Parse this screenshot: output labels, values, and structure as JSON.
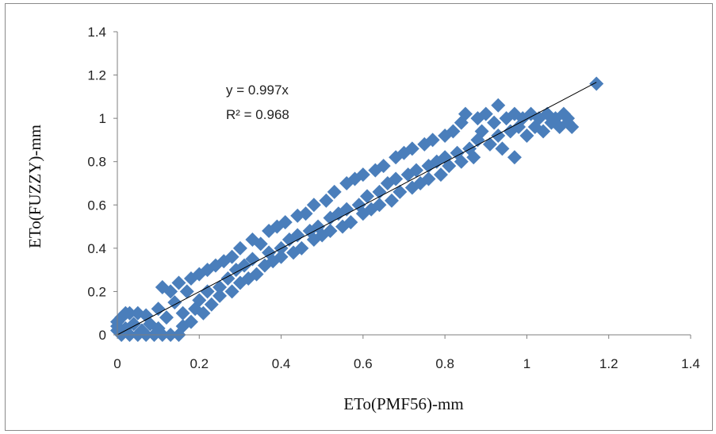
{
  "chart_data": {
    "type": "scatter",
    "xlabel": "ETo(PMF56)-mm",
    "ylabel": "ETo(FUZZY)-mm",
    "xlim": [
      0,
      1.4
    ],
    "ylim": [
      0,
      1.4
    ],
    "x_ticks": [
      "0",
      "0.2",
      "0.4",
      "0.6",
      "0.8",
      "1",
      "1.2",
      "1.4"
    ],
    "y_ticks": [
      "0",
      "0.2",
      "0.4",
      "0.6",
      "0.8",
      "1",
      "1.2",
      "1.4"
    ],
    "grid": false,
    "legend": "none",
    "trendline": {
      "equation": "y = 0.997x",
      "r2_label": "R² = 0.968",
      "slope": 0.997,
      "intercept": 0,
      "x_range": [
        0,
        1.17
      ]
    },
    "marker": {
      "shape": "diamond",
      "color": "#4a7ebb"
    },
    "series": [
      {
        "points": [
          [
            0.0,
            0.04
          ],
          [
            0.0,
            0.02
          ],
          [
            0.0,
            0.06
          ],
          [
            0.01,
            0.0
          ],
          [
            0.01,
            0.08
          ],
          [
            0.02,
            0.1
          ],
          [
            0.02,
            0.03
          ],
          [
            0.03,
            0.0
          ],
          [
            0.03,
            0.1
          ],
          [
            0.04,
            0.05
          ],
          [
            0.05,
            0.0
          ],
          [
            0.05,
            0.1
          ],
          [
            0.06,
            0.02
          ],
          [
            0.07,
            0.0
          ],
          [
            0.07,
            0.09
          ],
          [
            0.08,
            0.05
          ],
          [
            0.09,
            0.0
          ],
          [
            0.1,
            0.12
          ],
          [
            0.1,
            0.03
          ],
          [
            0.11,
            0.0
          ],
          [
            0.11,
            0.22
          ],
          [
            0.12,
            0.08
          ],
          [
            0.13,
            0.0
          ],
          [
            0.13,
            0.2
          ],
          [
            0.14,
            0.15
          ],
          [
            0.15,
            0.0
          ],
          [
            0.15,
            0.24
          ],
          [
            0.16,
            0.04
          ],
          [
            0.16,
            0.1
          ],
          [
            0.17,
            0.2
          ],
          [
            0.18,
            0.06
          ],
          [
            0.18,
            0.26
          ],
          [
            0.19,
            0.12
          ],
          [
            0.2,
            0.28
          ],
          [
            0.2,
            0.16
          ],
          [
            0.21,
            0.1
          ],
          [
            0.22,
            0.3
          ],
          [
            0.22,
            0.2
          ],
          [
            0.23,
            0.14
          ],
          [
            0.24,
            0.32
          ],
          [
            0.25,
            0.22
          ],
          [
            0.25,
            0.18
          ],
          [
            0.26,
            0.34
          ],
          [
            0.27,
            0.26
          ],
          [
            0.28,
            0.2
          ],
          [
            0.28,
            0.36
          ],
          [
            0.29,
            0.3
          ],
          [
            0.3,
            0.24
          ],
          [
            0.3,
            0.4
          ],
          [
            0.31,
            0.32
          ],
          [
            0.32,
            0.26
          ],
          [
            0.33,
            0.44
          ],
          [
            0.33,
            0.35
          ],
          [
            0.34,
            0.28
          ],
          [
            0.35,
            0.42
          ],
          [
            0.36,
            0.32
          ],
          [
            0.37,
            0.48
          ],
          [
            0.37,
            0.38
          ],
          [
            0.38,
            0.34
          ],
          [
            0.39,
            0.5
          ],
          [
            0.4,
            0.4
          ],
          [
            0.4,
            0.36
          ],
          [
            0.41,
            0.52
          ],
          [
            0.42,
            0.44
          ],
          [
            0.43,
            0.38
          ],
          [
            0.44,
            0.55
          ],
          [
            0.44,
            0.46
          ],
          [
            0.45,
            0.4
          ],
          [
            0.46,
            0.56
          ],
          [
            0.47,
            0.48
          ],
          [
            0.48,
            0.44
          ],
          [
            0.48,
            0.6
          ],
          [
            0.49,
            0.5
          ],
          [
            0.5,
            0.46
          ],
          [
            0.51,
            0.62
          ],
          [
            0.52,
            0.54
          ],
          [
            0.52,
            0.48
          ],
          [
            0.53,
            0.66
          ],
          [
            0.54,
            0.56
          ],
          [
            0.55,
            0.5
          ],
          [
            0.56,
            0.7
          ],
          [
            0.56,
            0.58
          ],
          [
            0.57,
            0.52
          ],
          [
            0.58,
            0.72
          ],
          [
            0.59,
            0.6
          ],
          [
            0.6,
            0.56
          ],
          [
            0.6,
            0.74
          ],
          [
            0.61,
            0.64
          ],
          [
            0.62,
            0.58
          ],
          [
            0.63,
            0.76
          ],
          [
            0.64,
            0.66
          ],
          [
            0.64,
            0.6
          ],
          [
            0.65,
            0.78
          ],
          [
            0.66,
            0.7
          ],
          [
            0.67,
            0.62
          ],
          [
            0.68,
            0.82
          ],
          [
            0.68,
            0.72
          ],
          [
            0.69,
            0.66
          ],
          [
            0.7,
            0.84
          ],
          [
            0.71,
            0.74
          ],
          [
            0.72,
            0.68
          ],
          [
            0.72,
            0.86
          ],
          [
            0.73,
            0.76
          ],
          [
            0.74,
            0.7
          ],
          [
            0.75,
            0.88
          ],
          [
            0.76,
            0.78
          ],
          [
            0.76,
            0.72
          ],
          [
            0.77,
            0.9
          ],
          [
            0.78,
            0.8
          ],
          [
            0.79,
            0.74
          ],
          [
            0.8,
            0.92
          ],
          [
            0.8,
            0.82
          ],
          [
            0.81,
            0.78
          ],
          [
            0.82,
            0.94
          ],
          [
            0.83,
            0.84
          ],
          [
            0.84,
            0.8
          ],
          [
            0.84,
            0.98
          ],
          [
            0.85,
            1.02
          ],
          [
            0.86,
            0.86
          ],
          [
            0.87,
            0.82
          ],
          [
            0.88,
            1.0
          ],
          [
            0.88,
            0.9
          ],
          [
            0.89,
            0.94
          ],
          [
            0.9,
            1.02
          ],
          [
            0.91,
            0.88
          ],
          [
            0.92,
            0.98
          ],
          [
            0.93,
            1.06
          ],
          [
            0.93,
            0.92
          ],
          [
            0.94,
            0.86
          ],
          [
            0.95,
            1.0
          ],
          [
            0.96,
            0.94
          ],
          [
            0.97,
            1.02
          ],
          [
            0.97,
            0.82
          ],
          [
            0.98,
            0.96
          ],
          [
            0.99,
            1.0
          ],
          [
            1.0,
            0.92
          ],
          [
            1.01,
            1.02
          ],
          [
            1.02,
            0.96
          ],
          [
            1.03,
            1.0
          ],
          [
            1.04,
            0.94
          ],
          [
            1.05,
            1.02
          ],
          [
            1.06,
            0.98
          ],
          [
            1.07,
            1.0
          ],
          [
            1.08,
            0.96
          ],
          [
            1.09,
            1.02
          ],
          [
            1.1,
            0.98
          ],
          [
            1.1,
            1.0
          ],
          [
            1.11,
            0.96
          ],
          [
            1.17,
            1.16
          ]
        ]
      }
    ]
  }
}
